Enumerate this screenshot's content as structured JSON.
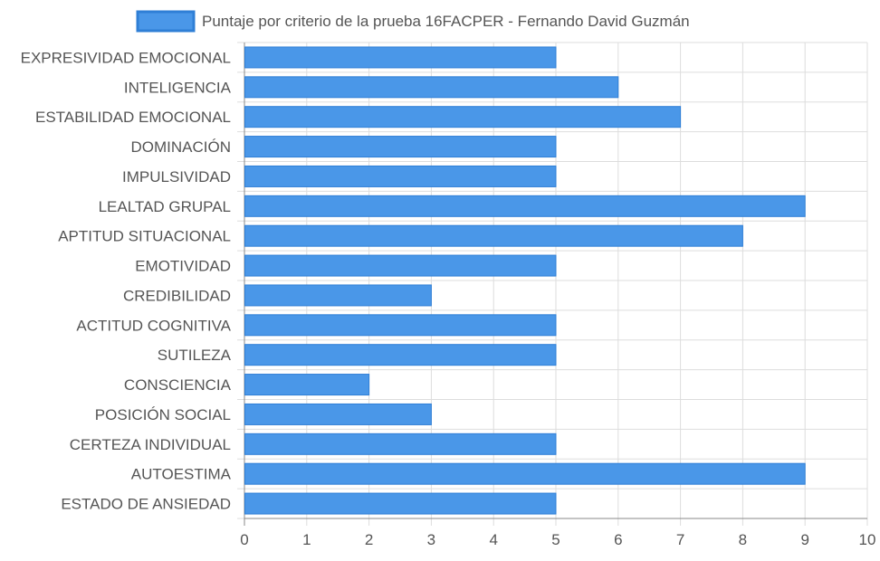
{
  "chart_data": {
    "type": "bar",
    "orientation": "horizontal",
    "legend": {
      "label": "Puntaje por criterio de la prueba 16FACPER - Fernando David Guzmán",
      "placement": "top-center"
    },
    "categories": [
      "EXPRESIVIDAD EMOCIONAL",
      "INTELIGENCIA",
      "ESTABILIDAD EMOCIONAL",
      "DOMINACIÓN",
      "IMPULSIVIDAD",
      "LEALTAD GRUPAL",
      "APTITUD SITUACIONAL",
      "EMOTIVIDAD",
      "CREDIBILIDAD",
      "ACTITUD COGNITIVA",
      "SUTILEZA",
      "CONSCIENCIA",
      "POSICIÓN SOCIAL",
      "CERTEZA INDIVIDUAL",
      "AUTOESTIMA",
      "ESTADO DE ANSIEDAD"
    ],
    "series": [
      {
        "name": "Puntaje por criterio de la prueba 16FACPER - Fernando David Guzmán",
        "values": [
          5,
          6,
          7,
          5,
          5,
          9,
          8,
          5,
          3,
          5,
          5,
          2,
          3,
          5,
          9,
          5
        ]
      }
    ],
    "xlim": [
      0,
      10
    ],
    "x_ticks": [
      "0",
      "1",
      "2",
      "3",
      "4",
      "5",
      "6",
      "7",
      "8",
      "9",
      "10"
    ],
    "grid": true,
    "colors": {
      "bar_fill": "#4a97e8",
      "bar_stroke": "#2f7fd6",
      "grid": "#dddddd",
      "axis": "#888888",
      "text": "#555555"
    }
  }
}
